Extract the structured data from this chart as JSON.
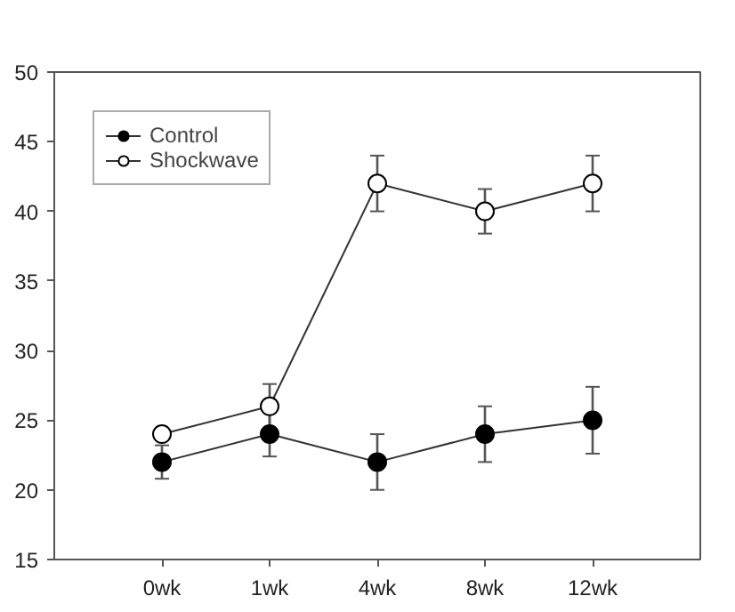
{
  "chart_data": {
    "type": "line",
    "categories": [
      "0wk",
      "1wk",
      "4wk",
      "8wk",
      "12wk"
    ],
    "series": [
      {
        "name": "Control",
        "color": "#000000",
        "values": [
          22,
          24,
          22,
          24,
          25
        ],
        "errors": [
          1.2,
          1.6,
          2,
          2,
          2.4
        ]
      },
      {
        "name": "Shockwave",
        "color": "#ffffff",
        "values": [
          24,
          26,
          42,
          40,
          42
        ],
        "errors": [
          null,
          1.6,
          2,
          1.6,
          2
        ]
      }
    ],
    "ylim": [
      15,
      50
    ],
    "yticks": [
      15,
      20,
      25,
      30,
      35,
      40,
      45,
      50
    ],
    "marker": "circle",
    "line_style": "solid",
    "legend": "top left",
    "grid": false
  }
}
